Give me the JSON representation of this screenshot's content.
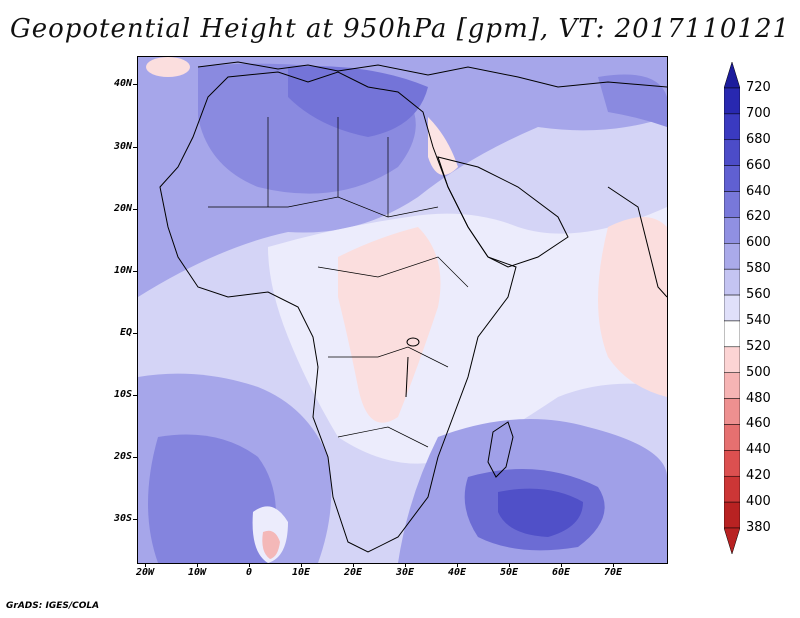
{
  "title": "Geopotential Height at 950hPa [gpm], VT: 2017110121",
  "credit": "GrADS: IGES/COLA",
  "map": {
    "lat_labels": [
      "40N",
      "30N",
      "20N",
      "10N",
      "EQ",
      "10S",
      "20S",
      "30S"
    ],
    "lon_labels": [
      "20W",
      "10W",
      "0",
      "10E",
      "20E",
      "30E",
      "40E",
      "50E",
      "60E",
      "70E"
    ],
    "lat_range": [
      -37,
      45
    ],
    "lon_range": [
      -22,
      80
    ]
  },
  "colorbar": {
    "levels": [
      "720",
      "700",
      "680",
      "660",
      "640",
      "620",
      "600",
      "580",
      "560",
      "540",
      "520",
      "500",
      "480",
      "460",
      "440",
      "420",
      "400",
      "380"
    ],
    "colors": [
      "#1c1c9c",
      "#2828b0",
      "#3a3ac0",
      "#4c4cc8",
      "#6060d2",
      "#7878da",
      "#9090e2",
      "#aaaaea",
      "#c4c4f2",
      "#e0e0fa",
      "#ffffff",
      "#fcd4d4",
      "#f6b4b4",
      "#ee9090",
      "#e67070",
      "#dc5050",
      "#cc3636",
      "#b82222"
    ]
  }
}
